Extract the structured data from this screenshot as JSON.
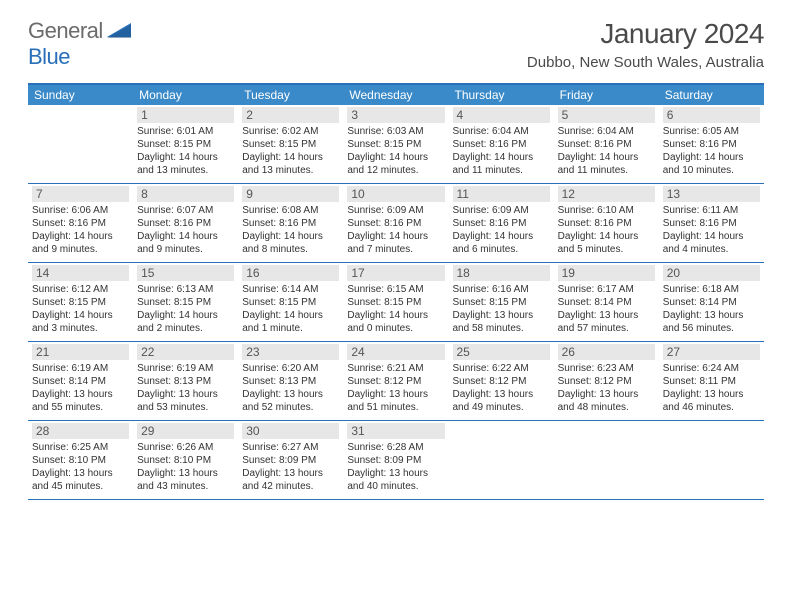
{
  "logo": {
    "text_gray": "General",
    "text_blue": "Blue"
  },
  "title": "January 2024",
  "subtitle": "Dubbo, New South Wales, Australia",
  "colors": {
    "header_bg": "#3a8ac9",
    "border": "#2970b8",
    "daynum_bg": "#e7e7e7",
    "text": "#333333",
    "logo_gray": "#6b6b6b",
    "logo_blue": "#2970b8"
  },
  "weekdays": [
    "Sunday",
    "Monday",
    "Tuesday",
    "Wednesday",
    "Thursday",
    "Friday",
    "Saturday"
  ],
  "weeks": [
    [
      {
        "n": "",
        "lines": []
      },
      {
        "n": "1",
        "lines": [
          "Sunrise: 6:01 AM",
          "Sunset: 8:15 PM",
          "Daylight: 14 hours",
          "and 13 minutes."
        ]
      },
      {
        "n": "2",
        "lines": [
          "Sunrise: 6:02 AM",
          "Sunset: 8:15 PM",
          "Daylight: 14 hours",
          "and 13 minutes."
        ]
      },
      {
        "n": "3",
        "lines": [
          "Sunrise: 6:03 AM",
          "Sunset: 8:15 PM",
          "Daylight: 14 hours",
          "and 12 minutes."
        ]
      },
      {
        "n": "4",
        "lines": [
          "Sunrise: 6:04 AM",
          "Sunset: 8:16 PM",
          "Daylight: 14 hours",
          "and 11 minutes."
        ]
      },
      {
        "n": "5",
        "lines": [
          "Sunrise: 6:04 AM",
          "Sunset: 8:16 PM",
          "Daylight: 14 hours",
          "and 11 minutes."
        ]
      },
      {
        "n": "6",
        "lines": [
          "Sunrise: 6:05 AM",
          "Sunset: 8:16 PM",
          "Daylight: 14 hours",
          "and 10 minutes."
        ]
      }
    ],
    [
      {
        "n": "7",
        "lines": [
          "Sunrise: 6:06 AM",
          "Sunset: 8:16 PM",
          "Daylight: 14 hours",
          "and 9 minutes."
        ]
      },
      {
        "n": "8",
        "lines": [
          "Sunrise: 6:07 AM",
          "Sunset: 8:16 PM",
          "Daylight: 14 hours",
          "and 9 minutes."
        ]
      },
      {
        "n": "9",
        "lines": [
          "Sunrise: 6:08 AM",
          "Sunset: 8:16 PM",
          "Daylight: 14 hours",
          "and 8 minutes."
        ]
      },
      {
        "n": "10",
        "lines": [
          "Sunrise: 6:09 AM",
          "Sunset: 8:16 PM",
          "Daylight: 14 hours",
          "and 7 minutes."
        ]
      },
      {
        "n": "11",
        "lines": [
          "Sunrise: 6:09 AM",
          "Sunset: 8:16 PM",
          "Daylight: 14 hours",
          "and 6 minutes."
        ]
      },
      {
        "n": "12",
        "lines": [
          "Sunrise: 6:10 AM",
          "Sunset: 8:16 PM",
          "Daylight: 14 hours",
          "and 5 minutes."
        ]
      },
      {
        "n": "13",
        "lines": [
          "Sunrise: 6:11 AM",
          "Sunset: 8:16 PM",
          "Daylight: 14 hours",
          "and 4 minutes."
        ]
      }
    ],
    [
      {
        "n": "14",
        "lines": [
          "Sunrise: 6:12 AM",
          "Sunset: 8:15 PM",
          "Daylight: 14 hours",
          "and 3 minutes."
        ]
      },
      {
        "n": "15",
        "lines": [
          "Sunrise: 6:13 AM",
          "Sunset: 8:15 PM",
          "Daylight: 14 hours",
          "and 2 minutes."
        ]
      },
      {
        "n": "16",
        "lines": [
          "Sunrise: 6:14 AM",
          "Sunset: 8:15 PM",
          "Daylight: 14 hours",
          "and 1 minute."
        ]
      },
      {
        "n": "17",
        "lines": [
          "Sunrise: 6:15 AM",
          "Sunset: 8:15 PM",
          "Daylight: 14 hours",
          "and 0 minutes."
        ]
      },
      {
        "n": "18",
        "lines": [
          "Sunrise: 6:16 AM",
          "Sunset: 8:15 PM",
          "Daylight: 13 hours",
          "and 58 minutes."
        ]
      },
      {
        "n": "19",
        "lines": [
          "Sunrise: 6:17 AM",
          "Sunset: 8:14 PM",
          "Daylight: 13 hours",
          "and 57 minutes."
        ]
      },
      {
        "n": "20",
        "lines": [
          "Sunrise: 6:18 AM",
          "Sunset: 8:14 PM",
          "Daylight: 13 hours",
          "and 56 minutes."
        ]
      }
    ],
    [
      {
        "n": "21",
        "lines": [
          "Sunrise: 6:19 AM",
          "Sunset: 8:14 PM",
          "Daylight: 13 hours",
          "and 55 minutes."
        ]
      },
      {
        "n": "22",
        "lines": [
          "Sunrise: 6:19 AM",
          "Sunset: 8:13 PM",
          "Daylight: 13 hours",
          "and 53 minutes."
        ]
      },
      {
        "n": "23",
        "lines": [
          "Sunrise: 6:20 AM",
          "Sunset: 8:13 PM",
          "Daylight: 13 hours",
          "and 52 minutes."
        ]
      },
      {
        "n": "24",
        "lines": [
          "Sunrise: 6:21 AM",
          "Sunset: 8:12 PM",
          "Daylight: 13 hours",
          "and 51 minutes."
        ]
      },
      {
        "n": "25",
        "lines": [
          "Sunrise: 6:22 AM",
          "Sunset: 8:12 PM",
          "Daylight: 13 hours",
          "and 49 minutes."
        ]
      },
      {
        "n": "26",
        "lines": [
          "Sunrise: 6:23 AM",
          "Sunset: 8:12 PM",
          "Daylight: 13 hours",
          "and 48 minutes."
        ]
      },
      {
        "n": "27",
        "lines": [
          "Sunrise: 6:24 AM",
          "Sunset: 8:11 PM",
          "Daylight: 13 hours",
          "and 46 minutes."
        ]
      }
    ],
    [
      {
        "n": "28",
        "lines": [
          "Sunrise: 6:25 AM",
          "Sunset: 8:10 PM",
          "Daylight: 13 hours",
          "and 45 minutes."
        ]
      },
      {
        "n": "29",
        "lines": [
          "Sunrise: 6:26 AM",
          "Sunset: 8:10 PM",
          "Daylight: 13 hours",
          "and 43 minutes."
        ]
      },
      {
        "n": "30",
        "lines": [
          "Sunrise: 6:27 AM",
          "Sunset: 8:09 PM",
          "Daylight: 13 hours",
          "and 42 minutes."
        ]
      },
      {
        "n": "31",
        "lines": [
          "Sunrise: 6:28 AM",
          "Sunset: 8:09 PM",
          "Daylight: 13 hours",
          "and 40 minutes."
        ]
      },
      {
        "n": "",
        "lines": []
      },
      {
        "n": "",
        "lines": []
      },
      {
        "n": "",
        "lines": []
      }
    ]
  ]
}
